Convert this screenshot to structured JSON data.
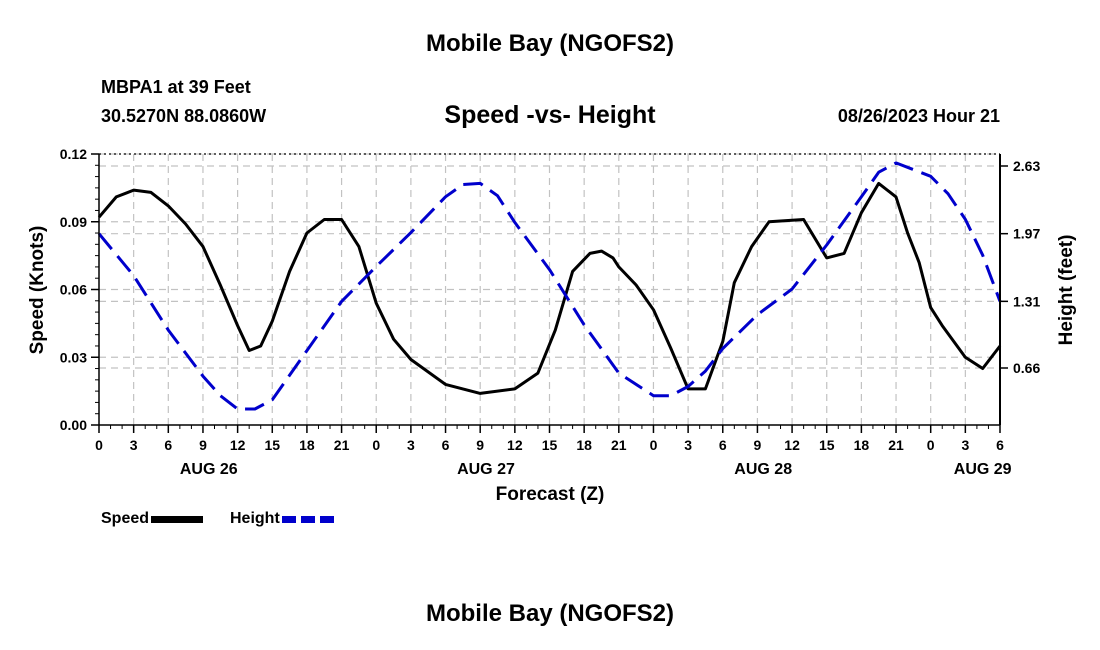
{
  "header": {
    "title": "Mobile Bay (NGOFS2)",
    "station": "MBPA1 at 39 Feet",
    "coords": "30.5270N  88.0860W",
    "subtitle": "Speed -vs- Height",
    "run_time": "08/26/2023 Hour 21"
  },
  "footer": {
    "title": "Mobile Bay (NGOFS2)"
  },
  "legend": {
    "speed_label": "Speed",
    "height_label": "Height",
    "speed_color": "#000000",
    "height_color": "#0000cc"
  },
  "chart_data": {
    "type": "line",
    "title": "Speed -vs- Height",
    "xlabel": "Forecast (Z)",
    "ylabel_left": "Speed (Knots)",
    "ylabel_right": "Height (feet)",
    "x_unit": "forecast hour since AUG 26 00Z",
    "xlim": [
      0,
      78
    ],
    "x_tick_hours": [
      0,
      3,
      6,
      9,
      12,
      15,
      18,
      21,
      24,
      27,
      30,
      33,
      36,
      39,
      42,
      45,
      48,
      51,
      54,
      57,
      60,
      63,
      66,
      69,
      72,
      75,
      78
    ],
    "x_tick_labels": [
      "0",
      "3",
      "6",
      "9",
      "12",
      "15",
      "18",
      "21",
      "0",
      "3",
      "6",
      "9",
      "12",
      "15",
      "18",
      "21",
      "0",
      "3",
      "6",
      "9",
      "12",
      "15",
      "18",
      "21",
      "0",
      "3",
      "6"
    ],
    "date_labels": [
      {
        "hour": 9.5,
        "label": "AUG 26"
      },
      {
        "hour": 33.5,
        "label": "AUG 27"
      },
      {
        "hour": 57.5,
        "label": "AUG 28"
      },
      {
        "hour": 76.5,
        "label": "AUG 29"
      }
    ],
    "ylim_left": [
      0,
      0.12
    ],
    "y_ticks_left": [
      0,
      0.03,
      0.06,
      0.09,
      0.12
    ],
    "y_tick_labels_left": [
      "0.00",
      "0.03",
      "0.06",
      "0.09",
      "0.12"
    ],
    "y_ticks_right": [
      0.66,
      1.31,
      1.97,
      2.63
    ],
    "y_tick_labels_right": [
      "0.66",
      "1.31",
      "1.97",
      "2.63"
    ],
    "grid": true,
    "series": [
      {
        "name": "Speed",
        "axis": "left",
        "style": "solid",
        "color": "#000000",
        "x": [
          0,
          1.5,
          3,
          4.5,
          6,
          7.5,
          9,
          10.5,
          12,
          13,
          14,
          15,
          16.5,
          18,
          19.5,
          21,
          22.5,
          24,
          25.5,
          27,
          30,
          33,
          36,
          38,
          39.5,
          41,
          42.5,
          43.5,
          44.5,
          45,
          46.5,
          48,
          49.5,
          51,
          52.5,
          54,
          55,
          56.5,
          58,
          61,
          63,
          64.5,
          66,
          67.5,
          69,
          70,
          71,
          72,
          73,
          75,
          76.5,
          78
        ],
        "y": [
          0.092,
          0.101,
          0.104,
          0.103,
          0.097,
          0.089,
          0.079,
          0.062,
          0.044,
          0.033,
          0.035,
          0.046,
          0.068,
          0.085,
          0.091,
          0.091,
          0.079,
          0.054,
          0.038,
          0.029,
          0.018,
          0.014,
          0.016,
          0.023,
          0.042,
          0.068,
          0.076,
          0.077,
          0.074,
          0.07,
          0.062,
          0.051,
          0.034,
          0.016,
          0.016,
          0.037,
          0.063,
          0.079,
          0.09,
          0.091,
          0.074,
          0.076,
          0.094,
          0.107,
          0.101,
          0.085,
          0.072,
          0.052,
          0.044,
          0.03,
          0.025,
          0.035
        ]
      },
      {
        "name": "Height",
        "axis": "right",
        "style": "dashed",
        "color": "#0000cc",
        "x": [
          0,
          3,
          6,
          9,
          10.5,
          12,
          13.5,
          15,
          18,
          21,
          24,
          27,
          30,
          31.5,
          33,
          34.5,
          36,
          39,
          42,
          45,
          48,
          49.5,
          51,
          52.5,
          54,
          57,
          60,
          63,
          66,
          67.5,
          69,
          72,
          73.5,
          75,
          76.5,
          78
        ],
        "y": [
          1.97,
          1.56,
          1.03,
          0.58,
          0.39,
          0.26,
          0.26,
          0.35,
          0.83,
          1.31,
          1.65,
          1.98,
          2.33,
          2.45,
          2.46,
          2.34,
          2.08,
          1.62,
          1.08,
          0.61,
          0.39,
          0.39,
          0.48,
          0.63,
          0.85,
          1.18,
          1.43,
          1.86,
          2.33,
          2.57,
          2.66,
          2.53,
          2.36,
          2.11,
          1.76,
          1.31
        ]
      }
    ]
  }
}
